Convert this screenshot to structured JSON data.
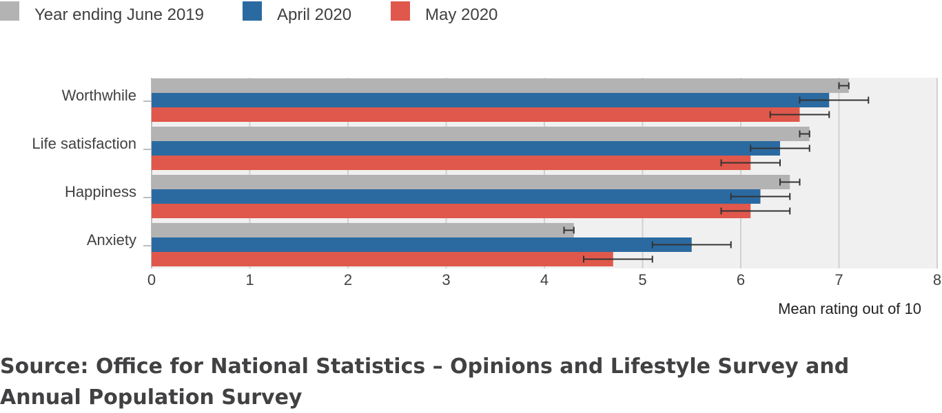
{
  "chart_data": {
    "type": "bar",
    "orientation": "horizontal",
    "categories": [
      "Worthwhile",
      "Life satisfaction",
      "Happiness",
      "Anxiety"
    ],
    "series": [
      {
        "name": "Year ending June 2019",
        "color": "#b3b3b3",
        "values": [
          7.1,
          6.7,
          6.5,
          4.3
        ],
        "error_low": [
          7.0,
          6.6,
          6.4,
          4.2
        ],
        "error_high": [
          7.1,
          6.7,
          6.6,
          4.3
        ]
      },
      {
        "name": "April 2020",
        "color": "#2b6aa0",
        "values": [
          6.9,
          6.4,
          6.2,
          5.5
        ],
        "error_low": [
          6.6,
          6.1,
          5.9,
          5.1
        ],
        "error_high": [
          7.3,
          6.7,
          6.5,
          5.9
        ]
      },
      {
        "name": "May 2020",
        "color": "#e0584b",
        "values": [
          6.6,
          6.1,
          6.1,
          4.7
        ],
        "error_low": [
          6.3,
          5.8,
          5.8,
          4.4
        ],
        "error_high": [
          6.9,
          6.4,
          6.5,
          5.1
        ]
      }
    ],
    "xlim": [
      0,
      8
    ],
    "xticks": [
      "0",
      "1",
      "2",
      "3",
      "4",
      "5",
      "6",
      "7",
      "8"
    ],
    "xlabel": "Mean rating out of 10",
    "grid": true,
    "legend_position": "top-left"
  },
  "source": "Source: Office for National Statistics – Opinions and Lifestyle Survey and Annual Population Survey"
}
